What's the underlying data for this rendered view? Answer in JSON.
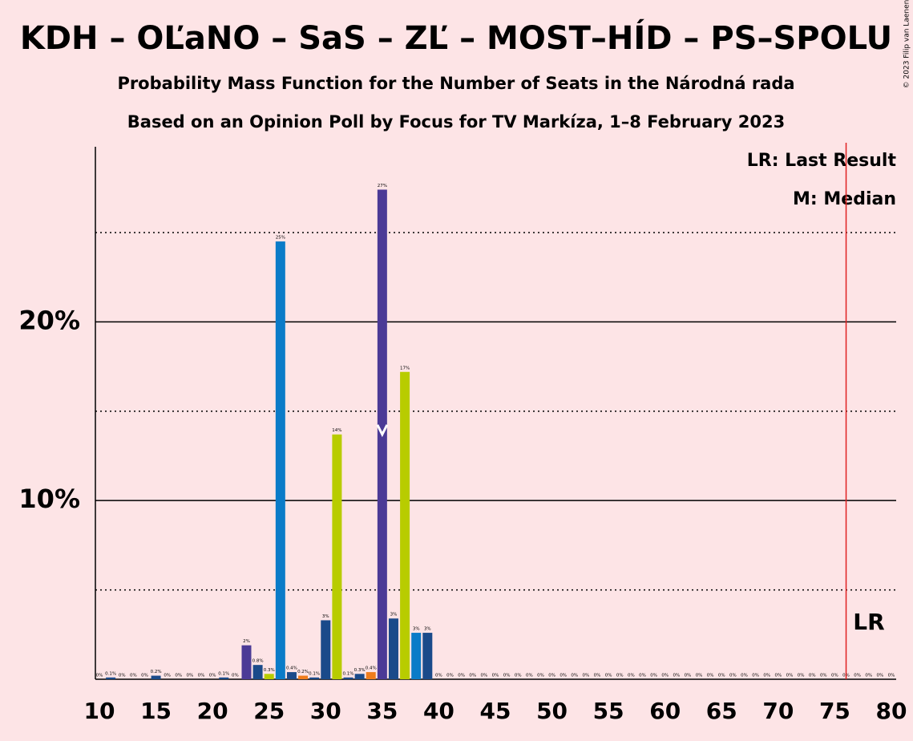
{
  "chart_data": {
    "type": "bar",
    "title": "KDH – OĽaNO – SaS – ZĽ – MOST–HÍD – PS–SPOLU",
    "subtitle": "Probability Mass Function for the Number of Seats in the Národná rada",
    "subtitle2": "Based on an Opinion Poll by Focus for TV Markíza, 1–8 February 2023",
    "copyright": "© 2023 Filip van Laenen",
    "legend": [
      "LR: Last Result",
      "M: Median"
    ],
    "lr_label": "LR",
    "median": 35,
    "last_result": 76,
    "last_result_color": "#e02020",
    "x": [
      10,
      11,
      12,
      13,
      14,
      15,
      16,
      17,
      18,
      19,
      20,
      21,
      22,
      23,
      24,
      25,
      26,
      27,
      28,
      29,
      30,
      31,
      32,
      33,
      34,
      35,
      36,
      37,
      38,
      39,
      40,
      41,
      42,
      43,
      44,
      45,
      46,
      47,
      48,
      49,
      50,
      51,
      52,
      53,
      54,
      55,
      56,
      57,
      58,
      59,
      60,
      61,
      62,
      63,
      64,
      65,
      66,
      67,
      68,
      69,
      70,
      71,
      72,
      73,
      74,
      75,
      76,
      77,
      78,
      79,
      80
    ],
    "values": [
      0,
      0.1,
      0,
      0,
      0,
      0.2,
      0,
      0,
      0,
      0,
      0,
      0.1,
      0,
      1.9,
      0.8,
      0.3,
      24.5,
      0.4,
      0.2,
      0.1,
      3.3,
      13.7,
      0.1,
      0.3,
      0.4,
      27.4,
      3.4,
      17.2,
      2.6,
      2.6,
      0,
      0,
      0,
      0,
      0,
      0,
      0,
      0,
      0,
      0,
      0,
      0,
      0,
      0,
      0,
      0,
      0,
      0,
      0,
      0,
      0,
      0,
      0,
      0,
      0,
      0,
      0,
      0,
      0,
      0,
      0,
      0,
      0,
      0,
      0,
      0,
      0,
      0,
      0,
      0,
      0
    ],
    "value_labels": [
      "0%",
      "0.1%",
      "0%",
      "0%",
      "0%",
      "0.2%",
      "0%",
      "0%",
      "0%",
      "0%",
      "0%",
      "0.1%",
      "0%",
      "2%",
      "0.8%",
      "0.3%",
      "25%",
      "0.4%",
      "0.2%",
      "0.1%",
      "3%",
      "14%",
      "0.1%",
      "0.3%",
      "0.4%",
      "27%",
      "3%",
      "17%",
      "3%",
      "3%",
      "0%",
      "0%",
      "0%",
      "0%",
      "0%",
      "0%",
      "0%",
      "0%",
      "0%",
      "0%",
      "0%",
      "0%",
      "0%",
      "0%",
      "0%",
      "0%",
      "0%",
      "0%",
      "0%",
      "0%",
      "0%",
      "0%",
      "0%",
      "0%",
      "0%",
      "0%",
      "0%",
      "0%",
      "0%",
      "0%",
      "0%",
      "0%",
      "0%",
      "0%",
      "0%",
      "0%",
      "0%",
      "0%",
      "0%",
      "0%",
      "0%"
    ],
    "colors": [
      "#1a4a8a",
      "#1a4a8a",
      "#1a4a8a",
      "#1a4a8a",
      "#1a4a8a",
      "#1a4a8a",
      "#1a4a8a",
      "#1a4a8a",
      "#1a4a8a",
      "#1a4a8a",
      "#1a4a8a",
      "#1a4a8a",
      "#1a4a8a",
      "#4b3a96",
      "#1a4a8a",
      "#b8cc00",
      "#0a7bc8",
      "#1a4a8a",
      "#f07c1c",
      "#1a4a8a",
      "#1a4a8a",
      "#b8cc00",
      "#1a4a8a",
      "#1a4a8a",
      "#f07c1c",
      "#4b3a96",
      "#1a4a8a",
      "#b8cc00",
      "#0a7bc8",
      "#1a4a8a",
      "#1a4a8a",
      "#1a4a8a",
      "#1a4a8a",
      "#1a4a8a",
      "#1a4a8a",
      "#1a4a8a",
      "#1a4a8a",
      "#1a4a8a",
      "#1a4a8a",
      "#1a4a8a",
      "#1a4a8a",
      "#1a4a8a",
      "#1a4a8a",
      "#1a4a8a",
      "#1a4a8a",
      "#1a4a8a",
      "#1a4a8a",
      "#1a4a8a",
      "#1a4a8a",
      "#1a4a8a",
      "#1a4a8a",
      "#1a4a8a",
      "#1a4a8a",
      "#1a4a8a",
      "#1a4a8a",
      "#1a4a8a",
      "#1a4a8a",
      "#1a4a8a",
      "#1a4a8a",
      "#1a4a8a",
      "#1a4a8a",
      "#1a4a8a",
      "#1a4a8a",
      "#1a4a8a",
      "#1a4a8a",
      "#1a4a8a",
      "#1a4a8a",
      "#1a4a8a",
      "#1a4a8a",
      "#1a4a8a",
      "#1a4a8a"
    ],
    "xlim": [
      10,
      80
    ],
    "xticks": [
      10,
      15,
      20,
      25,
      30,
      35,
      40,
      45,
      50,
      55,
      60,
      65,
      70,
      75,
      80
    ],
    "ylim": [
      0,
      29.8
    ],
    "yticks": [
      {
        "value": 10,
        "label": "10%"
      },
      {
        "value": 20,
        "label": "20%"
      }
    ],
    "minor_yticks": [
      5,
      15,
      25
    ],
    "grid": true
  }
}
